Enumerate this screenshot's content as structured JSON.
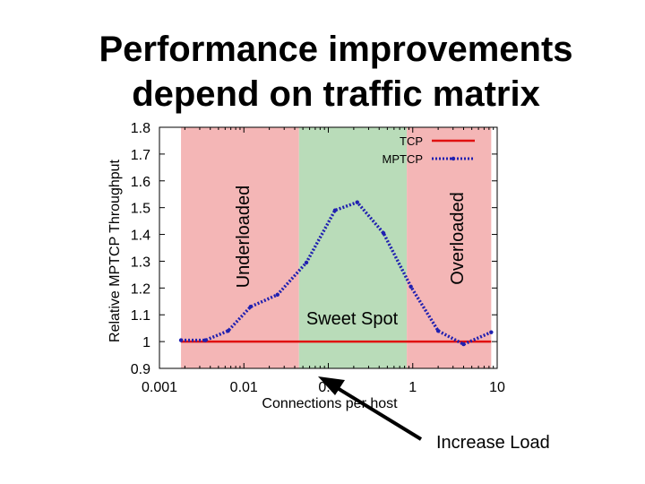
{
  "slide": {
    "title_line1": "Performance improvements",
    "title_line2": "depend on traffic matrix",
    "annotation": "Increase Load"
  },
  "chart_data": {
    "type": "line",
    "xlabel": "Connections per host",
    "ylabel": "Relative MPTCP Throughput",
    "xscale": "log",
    "xlim": [
      0.001,
      10
    ],
    "ylim": [
      0.9,
      1.8
    ],
    "xticks": [
      0.001,
      0.01,
      0.1,
      1,
      10
    ],
    "xtick_labels": [
      "0.001",
      "0.01",
      "0.1",
      "1",
      "10"
    ],
    "yticks": [
      0.9,
      1,
      1.1,
      1.2,
      1.3,
      1.4,
      1.5,
      1.6,
      1.7,
      1.8
    ],
    "ytick_labels": [
      "0.9",
      "1",
      "1.1",
      "1.2",
      "1.3",
      "1.4",
      "1.5",
      "1.6",
      "1.7",
      "1.8"
    ],
    "legend_position": "top-right",
    "regions": [
      {
        "label": "Underloaded",
        "x_range": [
          0.0018,
          0.045
        ],
        "color": "#f4b6b6"
      },
      {
        "label": "Sweet Spot",
        "x_range": [
          0.045,
          0.85
        ],
        "color": "#b9dcb9"
      },
      {
        "label": "Overloaded",
        "x_range": [
          0.85,
          8.5
        ],
        "color": "#f4b6b6"
      }
    ],
    "series": [
      {
        "name": "TCP",
        "color": "#e01010",
        "style": "solid",
        "x": [
          0.0018,
          8.5
        ],
        "y": [
          1.0,
          1.0
        ]
      },
      {
        "name": "MPTCP",
        "color": "#2020b0",
        "style": "dotted",
        "x": [
          0.0018,
          0.0035,
          0.0065,
          0.012,
          0.025,
          0.055,
          0.12,
          0.22,
          0.45,
          0.95,
          2.0,
          4.0,
          8.5
        ],
        "y": [
          1.005,
          1.005,
          1.04,
          1.13,
          1.175,
          1.295,
          1.49,
          1.52,
          1.405,
          1.205,
          1.04,
          0.99,
          1.035
        ]
      }
    ]
  }
}
